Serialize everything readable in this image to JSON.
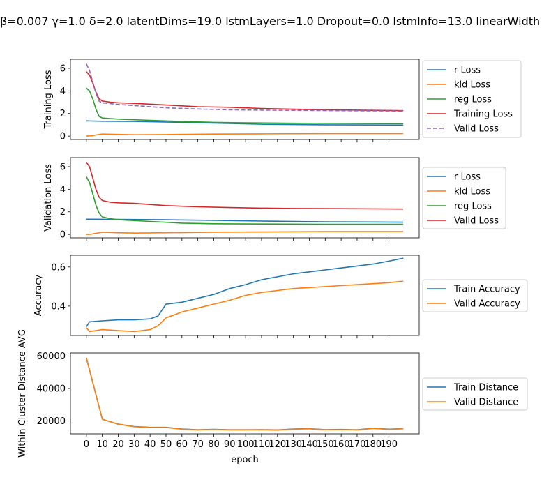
{
  "title": "β=0.007 γ=1.0 δ=2.0 latentDims=19.0 lstmLayers=1.0 Dropout=0.0 lstmInfo=13.0 linearWidth",
  "xlabel": "epoch",
  "x_ticks": [
    0,
    10,
    20,
    30,
    40,
    50,
    60,
    70,
    80,
    90,
    100,
    110,
    120,
    130,
    140,
    150,
    160,
    170,
    180,
    190
  ],
  "colors": {
    "blue": "#1f77b4",
    "orange": "#ff7f0e",
    "green": "#2ca02c",
    "red": "#d62728",
    "purple": "#9467bd"
  },
  "chart_data": [
    {
      "type": "line",
      "ylabel": "Training Loss",
      "ylim": [
        -0.3,
        6.8
      ],
      "yticks": [
        0,
        2,
        4,
        6
      ],
      "legend_position": "right",
      "series": [
        {
          "name": "r Loss",
          "color": "blue",
          "dashed": false,
          "points": [
            [
              0,
              1.35
            ],
            [
              10,
              1.32
            ],
            [
              30,
              1.3
            ],
            [
              50,
              1.25
            ],
            [
              80,
              1.15
            ],
            [
              110,
              1.05
            ],
            [
              150,
              1.0
            ],
            [
              199,
              0.98
            ]
          ]
        },
        {
          "name": "kld Loss",
          "color": "orange",
          "dashed": false,
          "points": [
            [
              0,
              0.0
            ],
            [
              3,
              0.02
            ],
            [
              6,
              0.1
            ],
            [
              10,
              0.18
            ],
            [
              20,
              0.15
            ],
            [
              30,
              0.12
            ],
            [
              50,
              0.14
            ],
            [
              80,
              0.18
            ],
            [
              110,
              0.2
            ],
            [
              150,
              0.22
            ],
            [
              199,
              0.22
            ]
          ]
        },
        {
          "name": "reg Loss",
          "color": "green",
          "dashed": false,
          "points": [
            [
              0,
              4.25
            ],
            [
              2,
              4.0
            ],
            [
              4,
              3.3
            ],
            [
              6,
              2.4
            ],
            [
              8,
              1.75
            ],
            [
              10,
              1.6
            ],
            [
              15,
              1.55
            ],
            [
              20,
              1.5
            ],
            [
              40,
              1.4
            ],
            [
              60,
              1.3
            ],
            [
              80,
              1.22
            ],
            [
              100,
              1.18
            ],
            [
              130,
              1.14
            ],
            [
              160,
              1.12
            ],
            [
              199,
              1.1
            ]
          ]
        },
        {
          "name": "Training Loss",
          "color": "red",
          "dashed": false,
          "points": [
            [
              0,
              5.7
            ],
            [
              2,
              5.4
            ],
            [
              4,
              4.7
            ],
            [
              6,
              3.9
            ],
            [
              8,
              3.3
            ],
            [
              10,
              3.1
            ],
            [
              15,
              3.0
            ],
            [
              20,
              2.95
            ],
            [
              30,
              2.9
            ],
            [
              50,
              2.75
            ],
            [
              70,
              2.6
            ],
            [
              90,
              2.55
            ],
            [
              110,
              2.45
            ],
            [
              130,
              2.38
            ],
            [
              150,
              2.33
            ],
            [
              170,
              2.3
            ],
            [
              199,
              2.25
            ]
          ]
        },
        {
          "name": "Valid Loss",
          "color": "purple",
          "dashed": true,
          "points": [
            [
              0,
              6.4
            ],
            [
              2,
              5.8
            ],
            [
              4,
              4.8
            ],
            [
              6,
              3.8
            ],
            [
              8,
              3.1
            ],
            [
              10,
              2.95
            ],
            [
              20,
              2.8
            ],
            [
              30,
              2.7
            ],
            [
              50,
              2.5
            ],
            [
              70,
              2.4
            ],
            [
              90,
              2.33
            ],
            [
              110,
              2.3
            ],
            [
              130,
              2.28
            ],
            [
              160,
              2.25
            ],
            [
              199,
              2.22
            ]
          ]
        }
      ]
    },
    {
      "type": "line",
      "ylabel": "Validation Loss",
      "ylim": [
        -0.3,
        6.8
      ],
      "yticks": [
        0,
        2,
        4,
        6
      ],
      "legend_position": "right",
      "series": [
        {
          "name": "r Loss",
          "color": "blue",
          "dashed": false,
          "points": [
            [
              0,
              1.35
            ],
            [
              20,
              1.33
            ],
            [
              50,
              1.3
            ],
            [
              80,
              1.25
            ],
            [
              110,
              1.18
            ],
            [
              150,
              1.12
            ],
            [
              199,
              1.08
            ]
          ]
        },
        {
          "name": "kld Loss",
          "color": "orange",
          "dashed": false,
          "points": [
            [
              0,
              0.0
            ],
            [
              3,
              0.02
            ],
            [
              6,
              0.1
            ],
            [
              10,
              0.2
            ],
            [
              20,
              0.15
            ],
            [
              30,
              0.12
            ],
            [
              50,
              0.15
            ],
            [
              80,
              0.2
            ],
            [
              110,
              0.22
            ],
            [
              150,
              0.25
            ],
            [
              199,
              0.25
            ]
          ]
        },
        {
          "name": "reg Loss",
          "color": "green",
          "dashed": false,
          "points": [
            [
              0,
              5.1
            ],
            [
              2,
              4.6
            ],
            [
              4,
              3.6
            ],
            [
              6,
              2.6
            ],
            [
              8,
              1.9
            ],
            [
              10,
              1.55
            ],
            [
              15,
              1.4
            ],
            [
              20,
              1.3
            ],
            [
              40,
              1.15
            ],
            [
              60,
              1.0
            ],
            [
              80,
              0.95
            ],
            [
              110,
              0.92
            ],
            [
              150,
              0.9
            ],
            [
              199,
              0.9
            ]
          ]
        },
        {
          "name": "Valid Loss",
          "color": "red",
          "dashed": false,
          "points": [
            [
              0,
              6.4
            ],
            [
              2,
              6.0
            ],
            [
              4,
              5.0
            ],
            [
              6,
              4.0
            ],
            [
              8,
              3.3
            ],
            [
              10,
              3.0
            ],
            [
              15,
              2.85
            ],
            [
              20,
              2.8
            ],
            [
              30,
              2.75
            ],
            [
              50,
              2.55
            ],
            [
              70,
              2.45
            ],
            [
              90,
              2.38
            ],
            [
              110,
              2.33
            ],
            [
              130,
              2.3
            ],
            [
              160,
              2.28
            ],
            [
              199,
              2.25
            ]
          ]
        }
      ]
    },
    {
      "type": "line",
      "ylabel": "Accuracy",
      "ylim": [
        0.25,
        0.66
      ],
      "yticks": [
        0.4,
        0.6
      ],
      "legend_position": "right",
      "series": [
        {
          "name": "Train Accuracy",
          "color": "blue",
          "dashed": false,
          "points": [
            [
              0,
              0.295
            ],
            [
              2,
              0.32
            ],
            [
              10,
              0.325
            ],
            [
              20,
              0.33
            ],
            [
              30,
              0.33
            ],
            [
              40,
              0.335
            ],
            [
              45,
              0.35
            ],
            [
              50,
              0.41
            ],
            [
              60,
              0.42
            ],
            [
              70,
              0.44
            ],
            [
              80,
              0.46
            ],
            [
              90,
              0.49
            ],
            [
              100,
              0.51
            ],
            [
              110,
              0.535
            ],
            [
              120,
              0.55
            ],
            [
              130,
              0.565
            ],
            [
              140,
              0.575
            ],
            [
              150,
              0.585
            ],
            [
              160,
              0.595
            ],
            [
              170,
              0.605
            ],
            [
              180,
              0.615
            ],
            [
              190,
              0.63
            ],
            [
              199,
              0.645
            ]
          ]
        },
        {
          "name": "Valid Accuracy",
          "color": "orange",
          "dashed": false,
          "points": [
            [
              0,
              0.29
            ],
            [
              2,
              0.27
            ],
            [
              10,
              0.28
            ],
            [
              20,
              0.275
            ],
            [
              30,
              0.27
            ],
            [
              40,
              0.28
            ],
            [
              45,
              0.3
            ],
            [
              50,
              0.34
            ],
            [
              60,
              0.37
            ],
            [
              70,
              0.39
            ],
            [
              80,
              0.41
            ],
            [
              90,
              0.43
            ],
            [
              100,
              0.455
            ],
            [
              110,
              0.47
            ],
            [
              120,
              0.48
            ],
            [
              130,
              0.49
            ],
            [
              140,
              0.495
            ],
            [
              150,
              0.5
            ],
            [
              160,
              0.505
            ],
            [
              170,
              0.51
            ],
            [
              180,
              0.515
            ],
            [
              190,
              0.52
            ],
            [
              199,
              0.528
            ]
          ]
        }
      ]
    },
    {
      "type": "line",
      "ylabel": "Within Cluster Distance AVG",
      "ylim": [
        12000,
        62000
      ],
      "yticks": [
        20000,
        40000,
        60000
      ],
      "legend_position": "right",
      "series": [
        {
          "name": "Train Distance",
          "color": "blue",
          "dashed": false,
          "points": [
            [
              0,
              59000
            ],
            [
              10,
              21000
            ],
            [
              20,
              18000
            ],
            [
              30,
              16500
            ],
            [
              40,
              16000
            ],
            [
              50,
              16000
            ],
            [
              60,
              15000
            ],
            [
              70,
              14500
            ],
            [
              80,
              14800
            ],
            [
              90,
              14500
            ],
            [
              100,
              14500
            ],
            [
              110,
              14600
            ],
            [
              120,
              14400
            ],
            [
              130,
              15000
            ],
            [
              140,
              15200
            ],
            [
              150,
              14600
            ],
            [
              160,
              14700
            ],
            [
              170,
              14500
            ],
            [
              180,
              15400
            ],
            [
              190,
              14900
            ],
            [
              199,
              15200
            ]
          ]
        },
        {
          "name": "Valid Distance",
          "color": "orange",
          "dashed": false,
          "points": [
            [
              0,
              59000
            ],
            [
              10,
              21000
            ],
            [
              20,
              18000
            ],
            [
              30,
              16400
            ],
            [
              40,
              15900
            ],
            [
              50,
              15900
            ],
            [
              60,
              14900
            ],
            [
              70,
              14400
            ],
            [
              80,
              14700
            ],
            [
              90,
              14400
            ],
            [
              100,
              14400
            ],
            [
              110,
              14500
            ],
            [
              120,
              14300
            ],
            [
              130,
              14900
            ],
            [
              140,
              15100
            ],
            [
              150,
              14500
            ],
            [
              160,
              14600
            ],
            [
              170,
              14400
            ],
            [
              180,
              15300
            ],
            [
              190,
              14800
            ],
            [
              199,
              15100
            ]
          ]
        }
      ]
    }
  ]
}
